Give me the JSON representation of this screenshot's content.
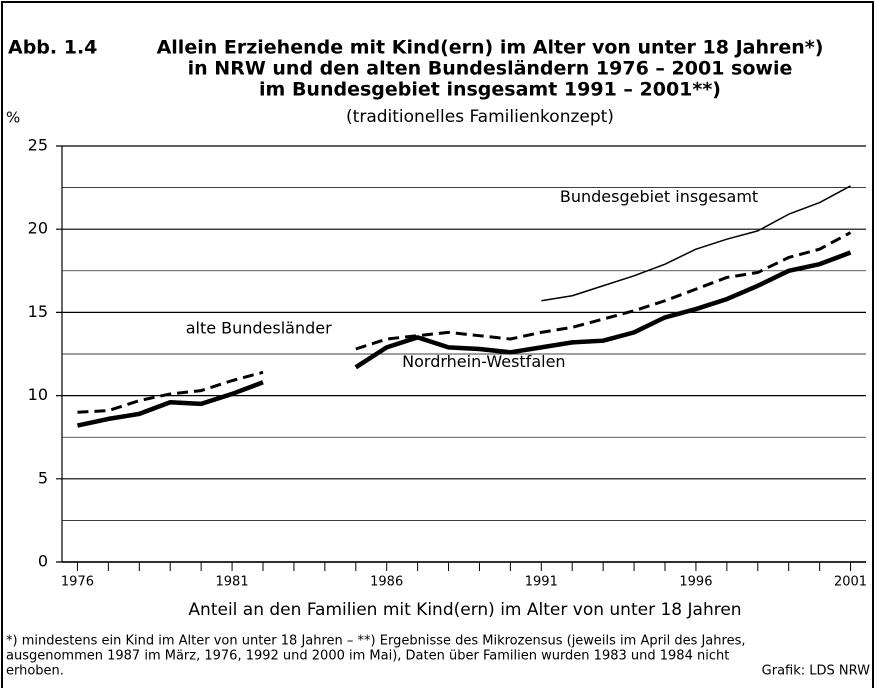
{
  "chart_data": {
    "type": "line",
    "figure_label": "Abb. 1.4",
    "title": [
      "Allein Erziehende mit Kind(ern) im Alter von unter 18 Jahren*)",
      "in NRW und den alten Bundesländern 1976 – 2001 sowie",
      "im Bundesgebiet insgesamt 1991 – 2001**)"
    ],
    "subtitle": "(traditionelles Familienkonzept)",
    "ylabel": "%",
    "xlabel": "Anteil  an den Familien mit Kind(ern) im Alter von unter 18 Jahren",
    "x": [
      1976,
      1977,
      1978,
      1979,
      1980,
      1981,
      1982,
      1983,
      1984,
      1985,
      1986,
      1987,
      1988,
      1989,
      1990,
      1991,
      1992,
      1993,
      1994,
      1995,
      1996,
      1997,
      1998,
      1999,
      2000,
      2001
    ],
    "series": [
      {
        "name": "Nordrhein-Westfalen",
        "color": "#000000",
        "style": "thick",
        "values": [
          8.2,
          8.6,
          8.9,
          9.6,
          9.5,
          10.1,
          10.8,
          null,
          null,
          11.7,
          12.9,
          13.5,
          12.9,
          12.8,
          12.6,
          12.9,
          13.2,
          13.3,
          13.8,
          14.7,
          15.2,
          15.8,
          16.6,
          17.5,
          17.9,
          18.6
        ]
      },
      {
        "name": "alte Bundesländer",
        "color": "#000000",
        "style": "dashed",
        "values": [
          9.0,
          9.1,
          9.7,
          10.1,
          10.3,
          10.9,
          11.4,
          null,
          null,
          12.8,
          13.4,
          13.6,
          13.8,
          13.6,
          13.4,
          13.8,
          14.1,
          14.6,
          15.1,
          15.7,
          16.4,
          17.1,
          17.4,
          18.3,
          18.8,
          19.8
        ]
      },
      {
        "name": "Bundesgebiet insgesamt",
        "color": "#000000",
        "style": "thin",
        "values": [
          null,
          null,
          null,
          null,
          null,
          null,
          null,
          null,
          null,
          null,
          null,
          null,
          null,
          null,
          null,
          15.7,
          16.0,
          16.6,
          17.2,
          17.9,
          18.8,
          19.4,
          19.9,
          20.9,
          21.6,
          22.6
        ]
      }
    ],
    "xlim": [
      1975.5,
      2001.5
    ],
    "xticks": [
      1976,
      1981,
      1986,
      1991,
      1996,
      2001
    ],
    "minor_xticks": [
      1976,
      1977,
      1978,
      1979,
      1980,
      1981,
      1982,
      1983,
      1984,
      1985,
      1986,
      1987,
      1988,
      1989,
      1990,
      1991,
      1992,
      1993,
      1994,
      1995,
      1996,
      1997,
      1998,
      1999,
      2000,
      2001
    ],
    "ylim": [
      0,
      25
    ],
    "yticks": [
      0,
      5,
      10,
      15,
      20,
      25
    ],
    "minor_grid": [
      2.5,
      7.5,
      12.5,
      17.5,
      22.5
    ],
    "grid": true,
    "footnotes": [
      "*) mindestens ein Kind im Alter von unter 18 Jahren – **) Ergebnisse des Mikrozensus (jeweils im April des Jahres,",
      "ausgenommen 1987 im März, 1976, 1992 und 2000 im Mai), Daten über Familien wurden 1983 und 1984 nicht",
      "erhoben."
    ],
    "source": "Grafik: LDS NRW"
  }
}
